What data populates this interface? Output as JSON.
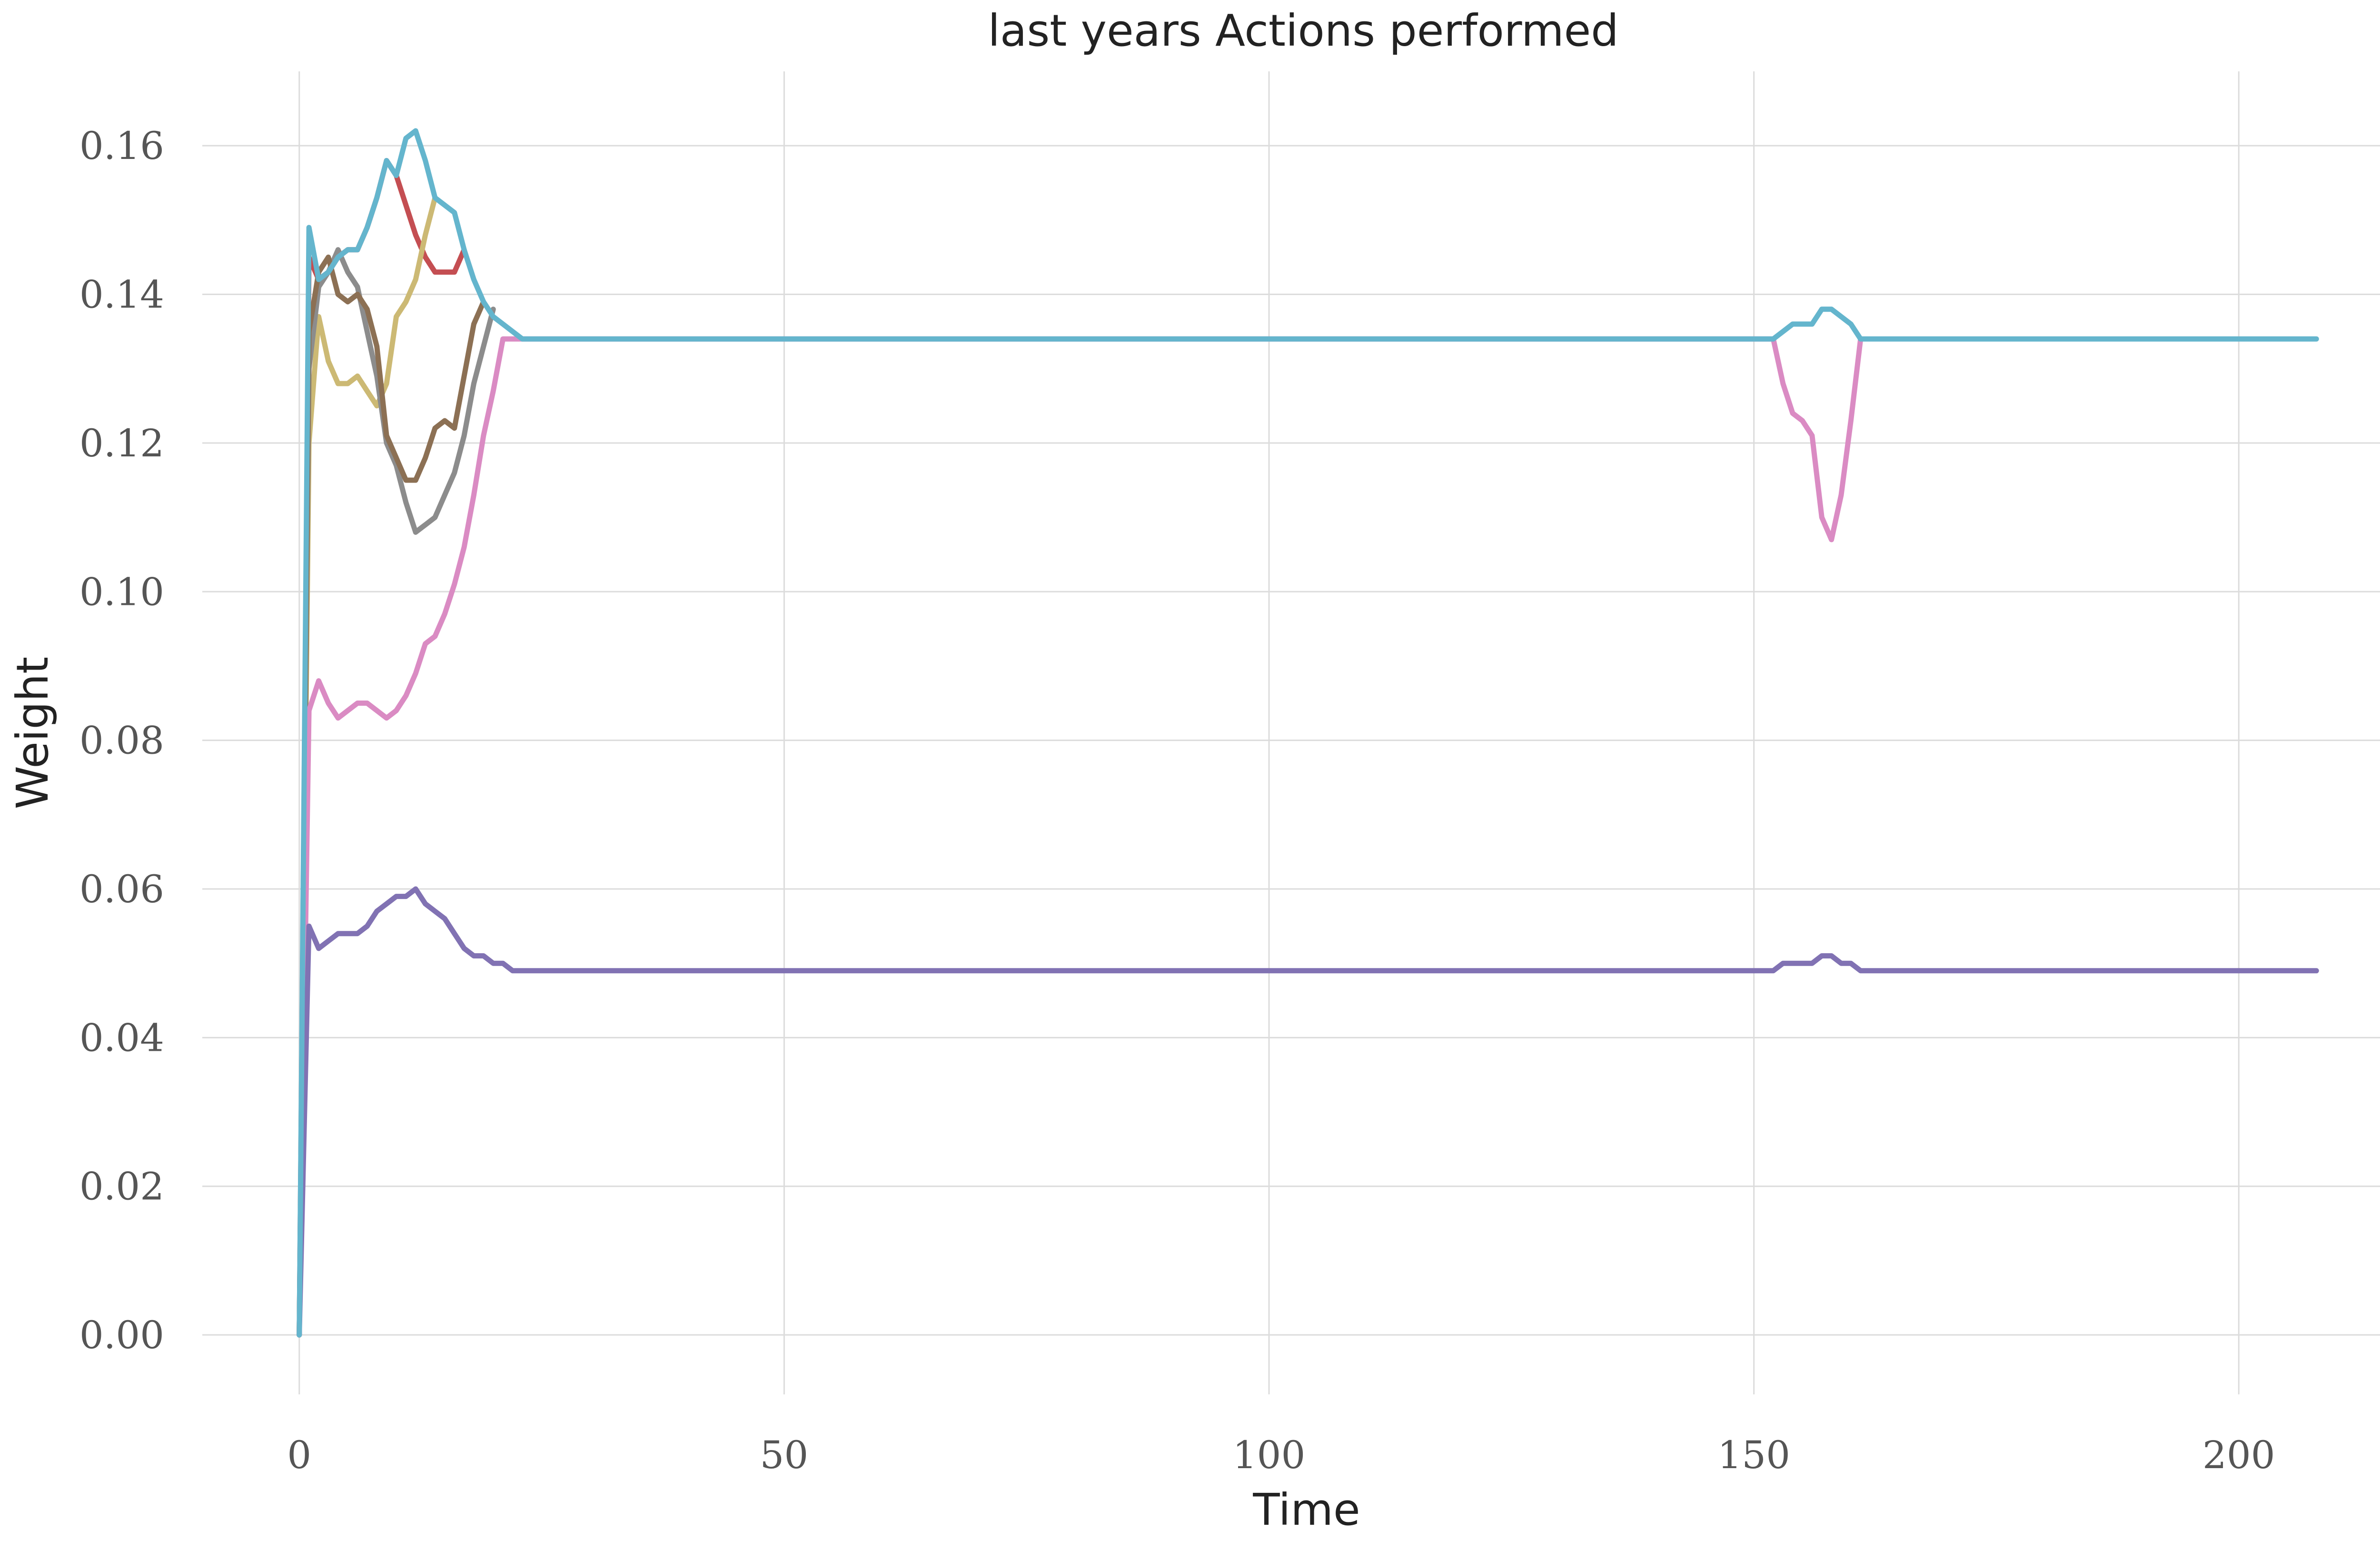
{
  "chart_data": {
    "type": "line",
    "title": "last years Actions performed",
    "xlabel": "Time",
    "ylabel": "Weight",
    "xlim": [
      -10,
      218
    ],
    "ylim": [
      -0.008,
      0.17
    ],
    "xticks": [
      0,
      50,
      100,
      150,
      200
    ],
    "xtick_labels": [
      "0",
      "50",
      "100",
      "150",
      "200"
    ],
    "yticks": [
      0.0,
      0.02,
      0.04,
      0.06,
      0.08,
      0.1,
      0.12,
      0.14,
      0.16
    ],
    "ytick_labels": [
      "0.00",
      "0.02",
      "0.04",
      "0.06",
      "0.08",
      "0.10",
      "0.12",
      "0.14",
      "0.16"
    ],
    "grid": true,
    "legend": "none",
    "series": [
      {
        "color": "#c44e52",
        "x": [
          0,
          1,
          2,
          3,
          4,
          5,
          6,
          7,
          8,
          9,
          10,
          11,
          12,
          13,
          14,
          15,
          16,
          17
        ],
        "y": [
          0.0,
          0.145,
          0.142,
          0.143,
          0.145,
          0.146,
          0.146,
          0.149,
          0.153,
          0.158,
          0.156,
          0.152,
          0.148,
          0.145,
          0.143,
          0.143,
          0.143,
          0.146
        ]
      },
      {
        "color": "#ccb974",
        "x": [
          0,
          1,
          2,
          3,
          4,
          5,
          6,
          7,
          8,
          9,
          10,
          11,
          12,
          13,
          14
        ],
        "y": [
          0.0,
          0.12,
          0.137,
          0.131,
          0.128,
          0.128,
          0.129,
          0.127,
          0.125,
          0.128,
          0.137,
          0.139,
          0.142,
          0.148,
          0.153
        ]
      },
      {
        "color": "#8c8c8c",
        "x": [
          0,
          1,
          2,
          3,
          4,
          5,
          6,
          7,
          8,
          9,
          10,
          11,
          12,
          13,
          14,
          15,
          16,
          17,
          18,
          19,
          20
        ],
        "y": [
          0.0,
          0.13,
          0.141,
          0.143,
          0.146,
          0.143,
          0.141,
          0.135,
          0.129,
          0.12,
          0.117,
          0.112,
          0.108,
          0.109,
          0.11,
          0.113,
          0.116,
          0.121,
          0.128,
          0.133,
          0.138
        ]
      },
      {
        "color": "#8c7054",
        "x": [
          0,
          1,
          2,
          3,
          4,
          5,
          6,
          7,
          8,
          9,
          10,
          11,
          12,
          13,
          14,
          15,
          16,
          17,
          18,
          19
        ],
        "y": [
          0.0,
          0.135,
          0.143,
          0.145,
          0.14,
          0.139,
          0.14,
          0.138,
          0.133,
          0.121,
          0.118,
          0.115,
          0.115,
          0.118,
          0.122,
          0.123,
          0.122,
          0.129,
          0.136,
          0.139
        ]
      },
      {
        "color": "#da8bc3",
        "x": [
          0,
          1,
          2,
          3,
          4,
          5,
          6,
          7,
          8,
          9,
          10,
          11,
          12,
          13,
          14,
          15,
          16,
          17,
          18,
          19,
          20,
          21,
          22,
          23,
          152,
          153,
          154,
          155,
          156,
          157,
          158,
          159,
          160,
          161
        ],
        "y": [
          0.0,
          0.084,
          0.088,
          0.085,
          0.083,
          0.084,
          0.085,
          0.085,
          0.084,
          0.083,
          0.084,
          0.086,
          0.089,
          0.093,
          0.094,
          0.097,
          0.101,
          0.106,
          0.113,
          0.121,
          0.127,
          0.134,
          0.134,
          0.134,
          0.134,
          0.128,
          0.124,
          0.123,
          0.121,
          0.11,
          0.107,
          0.113,
          0.123,
          0.134
        ]
      },
      {
        "color": "#8172b3",
        "x": [
          0,
          1,
          2,
          3,
          4,
          5,
          6,
          7,
          8,
          9,
          10,
          11,
          12,
          13,
          14,
          15,
          16,
          17,
          18,
          19,
          20,
          21,
          22,
          23,
          152,
          153,
          154,
          155,
          156,
          157,
          158,
          159,
          160,
          161,
          208
        ],
        "y": [
          0.0,
          0.055,
          0.052,
          0.053,
          0.054,
          0.054,
          0.054,
          0.055,
          0.057,
          0.058,
          0.059,
          0.059,
          0.06,
          0.058,
          0.057,
          0.056,
          0.054,
          0.052,
          0.051,
          0.051,
          0.05,
          0.05,
          0.049,
          0.049,
          0.049,
          0.05,
          0.05,
          0.05,
          0.05,
          0.051,
          0.051,
          0.05,
          0.05,
          0.049,
          0.049
        ]
      },
      {
        "color": "#64b5cd",
        "x": [
          0,
          1,
          2,
          3,
          4,
          5,
          6,
          7,
          8,
          9,
          10,
          11,
          12,
          13,
          14,
          15,
          16,
          17,
          18,
          19,
          20,
          21,
          22,
          23,
          152,
          153,
          154,
          155,
          156,
          157,
          158,
          159,
          160,
          161,
          208
        ],
        "y": [
          0.0,
          0.149,
          0.142,
          0.143,
          0.145,
          0.146,
          0.146,
          0.149,
          0.153,
          0.158,
          0.156,
          0.161,
          0.162,
          0.158,
          0.153,
          0.152,
          0.151,
          0.146,
          0.142,
          0.139,
          0.137,
          0.136,
          0.135,
          0.134,
          0.134,
          0.135,
          0.136,
          0.136,
          0.136,
          0.138,
          0.138,
          0.137,
          0.136,
          0.134,
          0.134
        ]
      }
    ]
  }
}
